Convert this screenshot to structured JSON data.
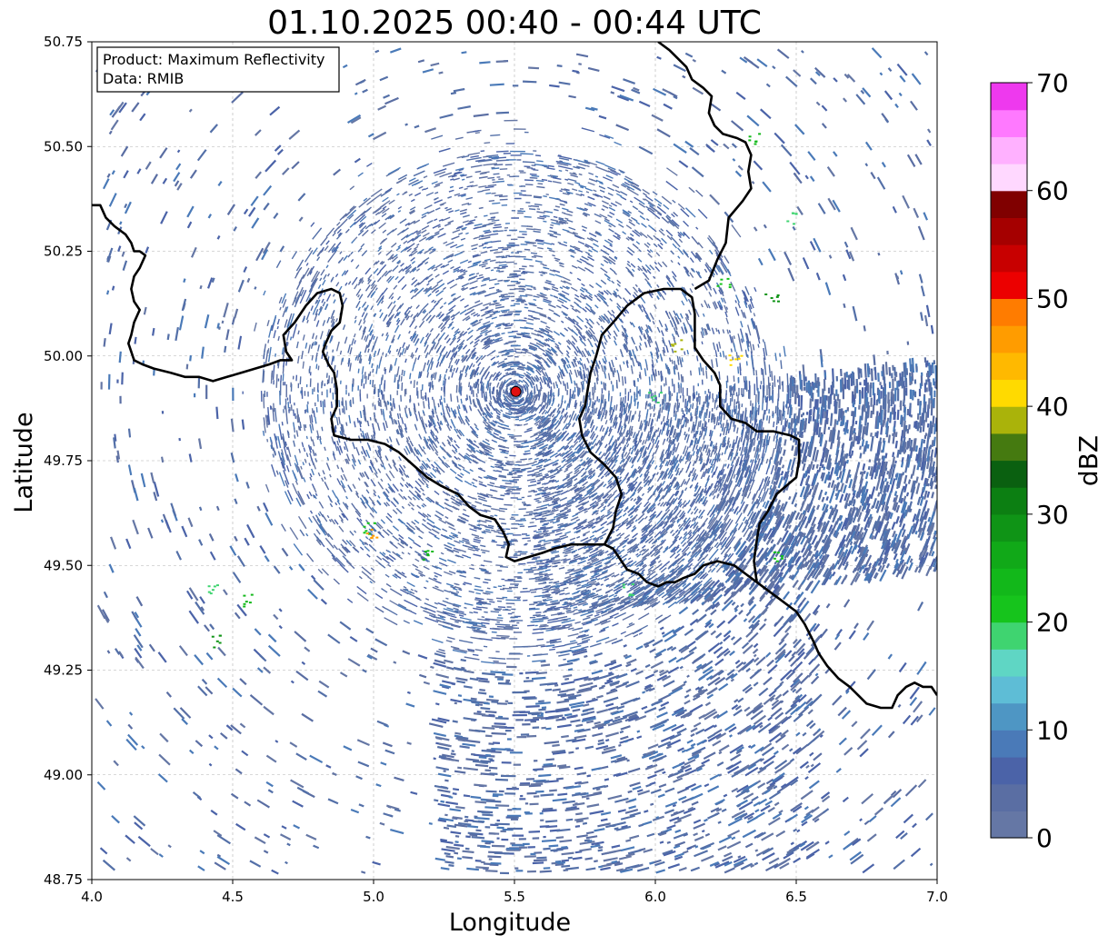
{
  "title": "01.10.2025 00:40 - 00:44 UTC",
  "info_box": {
    "product_line": "Product: Maximum Reflectivity",
    "data_line": "Data: RMIB"
  },
  "axes": {
    "xlabel": "Longitude",
    "ylabel": "Latitude",
    "xlim": [
      4.0,
      7.0
    ],
    "ylim": [
      48.75,
      50.75
    ],
    "x_ticks": [
      "4.0",
      "4.5",
      "5.0",
      "5.5",
      "6.0",
      "6.5",
      "7.0"
    ],
    "y_ticks": [
      "50.75",
      "50.50",
      "50.25",
      "50.00",
      "49.75",
      "49.50",
      "49.25",
      "49.00",
      "48.75"
    ],
    "grid": true
  },
  "colorbar": {
    "label": "dBZ",
    "range": [
      0,
      70
    ],
    "tick_labels": [
      "0",
      "10",
      "20",
      "30",
      "40",
      "50",
      "60",
      "70"
    ],
    "colors": [
      "#6577a5",
      "#5a6ea3",
      "#4b63a8",
      "#4a7ab8",
      "#4e96c4",
      "#5ebdd6",
      "#5fd6c4",
      "#3fd470",
      "#16c41c",
      "#12b81a",
      "#11a918",
      "#0f9416",
      "#0c7f12",
      "#0a6010",
      "#457a10",
      "#aab30a",
      "#ffda00",
      "#ffb900",
      "#ff9c00",
      "#ff7c00",
      "#ec0000",
      "#c80000",
      "#a50000",
      "#800000",
      "#ffd8ff",
      "#ffb1ff",
      "#ff79ff",
      "#ee39ee"
    ]
  },
  "radar_site": {
    "lon": 5.505,
    "lat": 49.915,
    "color": "#e01010"
  },
  "borders": [
    [
      [
        4.0,
        50.36
      ],
      [
        4.03,
        50.36
      ],
      [
        4.05,
        50.33
      ],
      [
        4.08,
        50.31
      ],
      [
        4.12,
        50.29
      ],
      [
        4.14,
        50.27
      ],
      [
        4.15,
        50.25
      ],
      [
        4.17,
        50.25
      ],
      [
        4.19,
        50.24
      ],
      [
        4.17,
        50.21
      ],
      [
        4.15,
        50.19
      ],
      [
        4.14,
        50.16
      ],
      [
        4.15,
        50.13
      ],
      [
        4.17,
        50.11
      ],
      [
        4.15,
        50.08
      ],
      [
        4.14,
        50.05
      ],
      [
        4.13,
        50.03
      ],
      [
        4.14,
        50.01
      ],
      [
        4.15,
        49.99
      ],
      [
        4.18,
        49.98
      ],
      [
        4.22,
        49.97
      ],
      [
        4.28,
        49.96
      ],
      [
        4.33,
        49.95
      ],
      [
        4.38,
        49.95
      ],
      [
        4.43,
        49.94
      ],
      [
        4.48,
        49.95
      ],
      [
        4.53,
        49.96
      ],
      [
        4.58,
        49.97
      ],
      [
        4.63,
        49.98
      ],
      [
        4.67,
        49.99
      ],
      [
        4.71,
        49.99
      ],
      [
        4.69,
        50.01
      ],
      [
        4.68,
        50.05
      ],
      [
        4.72,
        50.08
      ],
      [
        4.76,
        50.12
      ],
      [
        4.8,
        50.15
      ],
      [
        4.85,
        50.16
      ],
      [
        4.88,
        50.15
      ],
      [
        4.89,
        50.12
      ],
      [
        4.88,
        50.08
      ],
      [
        4.85,
        50.06
      ],
      [
        4.83,
        50.03
      ],
      [
        4.82,
        50.01
      ],
      [
        4.84,
        49.98
      ],
      [
        4.86,
        49.96
      ],
      [
        4.87,
        49.92
      ],
      [
        4.87,
        49.88
      ],
      [
        4.85,
        49.85
      ],
      [
        4.86,
        49.81
      ],
      [
        4.92,
        49.8
      ],
      [
        4.98,
        49.8
      ],
      [
        5.04,
        49.79
      ],
      [
        5.09,
        49.77
      ],
      [
        5.14,
        49.74
      ],
      [
        5.19,
        49.71
      ],
      [
        5.24,
        49.69
      ],
      [
        5.3,
        49.67
      ],
      [
        5.34,
        49.64
      ],
      [
        5.38,
        49.62
      ],
      [
        5.43,
        49.61
      ],
      [
        5.46,
        49.58
      ],
      [
        5.48,
        49.55
      ],
      [
        5.47,
        49.52
      ],
      [
        5.5,
        49.51
      ],
      [
        5.55,
        49.52
      ],
      [
        5.6,
        49.53
      ],
      [
        5.64,
        49.54
      ],
      [
        5.7,
        49.55
      ],
      [
        5.75,
        49.55
      ],
      [
        5.79,
        49.55
      ],
      [
        5.82,
        49.55
      ],
      [
        5.85,
        49.54
      ],
      [
        5.87,
        49.52
      ],
      [
        5.9,
        49.49
      ],
      [
        5.94,
        49.48
      ],
      [
        5.97,
        49.46
      ],
      [
        6.01,
        49.45
      ],
      [
        6.04,
        49.46
      ],
      [
        6.07,
        49.46
      ],
      [
        6.1,
        49.47
      ],
      [
        6.14,
        49.48
      ],
      [
        6.17,
        49.5
      ],
      [
        6.22,
        49.51
      ],
      [
        6.28,
        49.5
      ],
      [
        6.32,
        49.48
      ],
      [
        6.36,
        49.46
      ],
      [
        6.4,
        49.44
      ],
      [
        6.44,
        49.42
      ],
      [
        6.5,
        49.39
      ],
      [
        6.53,
        49.36
      ],
      [
        6.56,
        49.32
      ],
      [
        6.58,
        49.29
      ],
      [
        6.61,
        49.26
      ],
      [
        6.65,
        49.23
      ],
      [
        6.69,
        49.21
      ],
      [
        6.72,
        49.19
      ],
      [
        6.75,
        49.17
      ],
      [
        6.8,
        49.16
      ],
      [
        6.84,
        49.16
      ],
      [
        6.86,
        49.19
      ],
      [
        6.89,
        49.21
      ],
      [
        6.92,
        49.22
      ],
      [
        6.95,
        49.21
      ],
      [
        6.98,
        49.21
      ],
      [
        7.0,
        49.19
      ]
    ],
    [
      [
        5.82,
        49.55
      ],
      [
        5.85,
        49.59
      ],
      [
        5.86,
        49.63
      ],
      [
        5.88,
        49.67
      ],
      [
        5.86,
        49.71
      ],
      [
        5.82,
        49.74
      ],
      [
        5.77,
        49.77
      ],
      [
        5.74,
        49.81
      ],
      [
        5.73,
        49.85
      ],
      [
        5.75,
        49.88
      ],
      [
        5.76,
        49.92
      ],
      [
        5.77,
        49.96
      ],
      [
        5.79,
        50.0
      ],
      [
        5.81,
        50.05
      ],
      [
        5.85,
        50.08
      ],
      [
        5.9,
        50.12
      ],
      [
        5.96,
        50.15
      ],
      [
        6.03,
        50.16
      ],
      [
        6.09,
        50.16
      ],
      [
        6.13,
        50.14
      ],
      [
        6.14,
        50.1
      ],
      [
        6.14,
        50.06
      ],
      [
        6.14,
        50.02
      ],
      [
        6.17,
        49.99
      ],
      [
        6.21,
        49.96
      ],
      [
        6.23,
        49.93
      ],
      [
        6.23,
        49.88
      ],
      [
        6.27,
        49.85
      ],
      [
        6.32,
        49.84
      ],
      [
        6.36,
        49.82
      ],
      [
        6.42,
        49.82
      ],
      [
        6.48,
        49.81
      ],
      [
        6.51,
        49.8
      ],
      [
        6.51,
        49.75
      ],
      [
        6.5,
        49.71
      ],
      [
        6.43,
        49.67
      ],
      [
        6.4,
        49.63
      ],
      [
        6.37,
        49.6
      ],
      [
        6.36,
        49.56
      ],
      [
        6.35,
        49.51
      ],
      [
        6.36,
        49.46
      ]
    ],
    [
      [
        6.14,
        50.16
      ],
      [
        6.19,
        50.18
      ],
      [
        6.22,
        50.23
      ],
      [
        6.25,
        50.27
      ],
      [
        6.26,
        50.33
      ],
      [
        6.31,
        50.37
      ],
      [
        6.34,
        50.4
      ],
      [
        6.33,
        50.44
      ],
      [
        6.34,
        50.48
      ],
      [
        6.32,
        50.51
      ],
      [
        6.29,
        50.52
      ],
      [
        6.24,
        50.53
      ],
      [
        6.21,
        50.55
      ],
      [
        6.19,
        50.58
      ],
      [
        6.2,
        50.62
      ],
      [
        6.17,
        50.64
      ],
      [
        6.13,
        50.66
      ],
      [
        6.11,
        50.69
      ],
      [
        6.05,
        50.73
      ],
      [
        6.01,
        50.75
      ]
    ]
  ]
}
